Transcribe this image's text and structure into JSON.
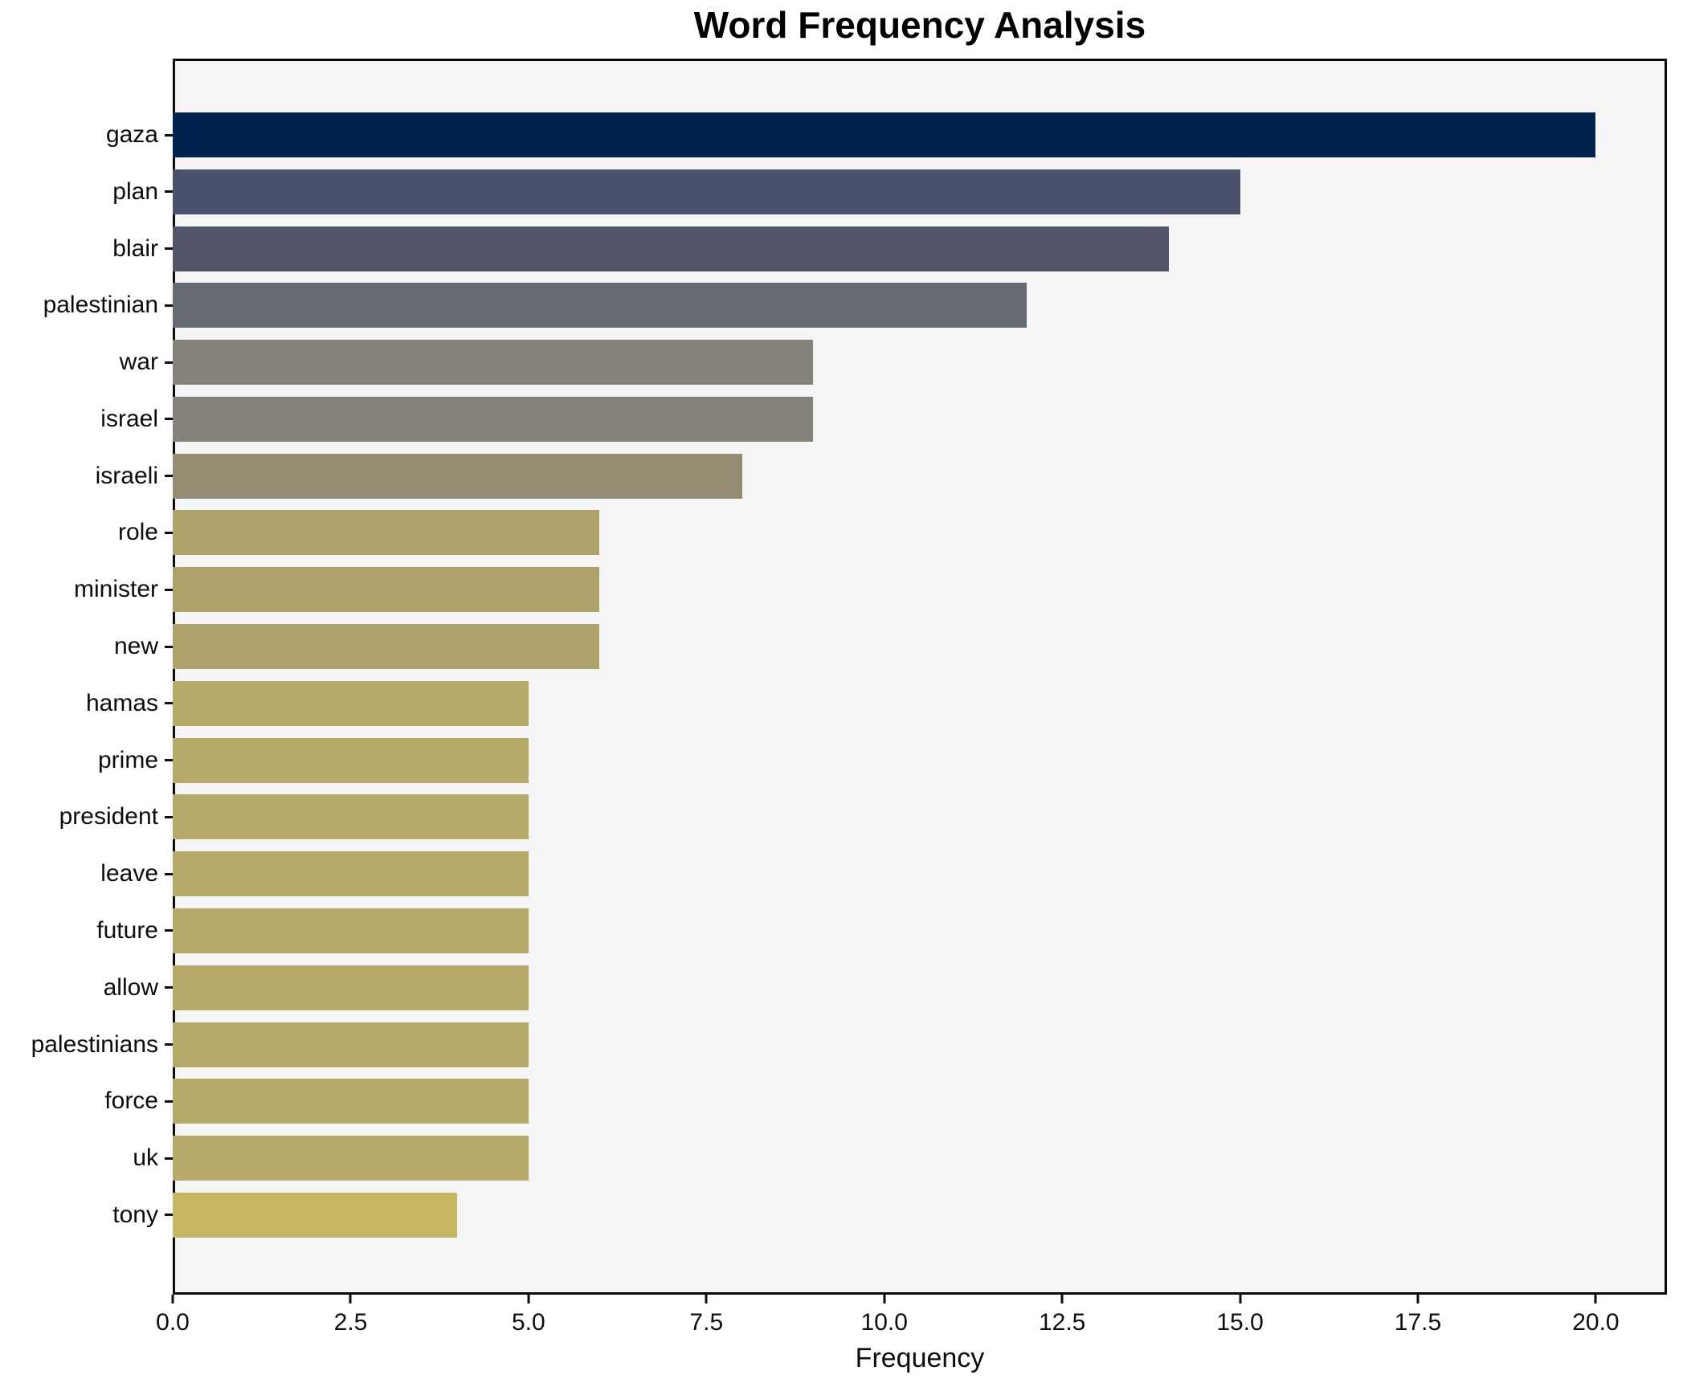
{
  "title": "Word Frequency Analysis",
  "axis": {
    "xlabel": "Frequency"
  },
  "colors": {
    "figure_background": "#ffffff",
    "plot_background": "#f5f5f6",
    "spine": "#0b0b0b",
    "text": "#0d0d0d"
  },
  "chart_data": {
    "type": "bar",
    "orientation": "horizontal",
    "title": "Word Frequency Analysis",
    "xlabel": "Frequency",
    "ylabel": "",
    "grid": false,
    "legend": false,
    "xlim": [
      0,
      21
    ],
    "x_ticks": [
      0,
      2.5,
      5,
      7.5,
      10,
      12.5,
      15,
      17.5,
      20
    ],
    "x_tick_labels": [
      "0.0",
      "2.5",
      "5.0",
      "7.5",
      "10.0",
      "12.5",
      "15.0",
      "17.5",
      "20.0"
    ],
    "categories": [
      "gaza",
      "plan",
      "blair",
      "palestinian",
      "war",
      "israel",
      "israeli",
      "role",
      "minister",
      "new",
      "hamas",
      "prime",
      "president",
      "leave",
      "future",
      "allow",
      "palestinians",
      "force",
      "uk",
      "tony"
    ],
    "values": [
      20,
      15,
      14,
      12,
      9,
      9,
      8,
      6,
      6,
      6,
      5,
      5,
      5,
      5,
      5,
      5,
      5,
      5,
      5,
      4
    ],
    "bar_colors": [
      "#00224e",
      "#4a526b",
      "#53566a",
      "#666a72",
      "#858379",
      "#858379",
      "#948d74",
      "#ada26a",
      "#ada26a",
      "#ada26a",
      "#b5aa6a",
      "#b5aa6a",
      "#b5aa6a",
      "#b5aa6a",
      "#b5aa6a",
      "#b5aa6a",
      "#b5aa6a",
      "#b5aa6a",
      "#b5aa6a",
      "#c6b562"
    ]
  }
}
